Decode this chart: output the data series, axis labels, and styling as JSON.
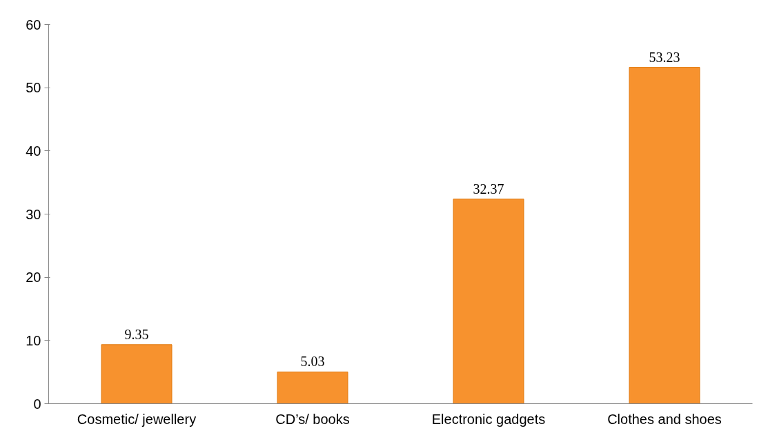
{
  "chart_data": {
    "type": "bar",
    "categories": [
      "Cosmetic/ jewellery",
      "CD’s/ books",
      "Electronic gadgets",
      "Clothes and shoes"
    ],
    "values": [
      9.35,
      5.03,
      32.37,
      53.23
    ],
    "color": "#f7922e",
    "ylim": [
      0,
      60
    ],
    "yticks": [
      0,
      10,
      20,
      30,
      40,
      50,
      60
    ],
    "data_labels": true
  }
}
